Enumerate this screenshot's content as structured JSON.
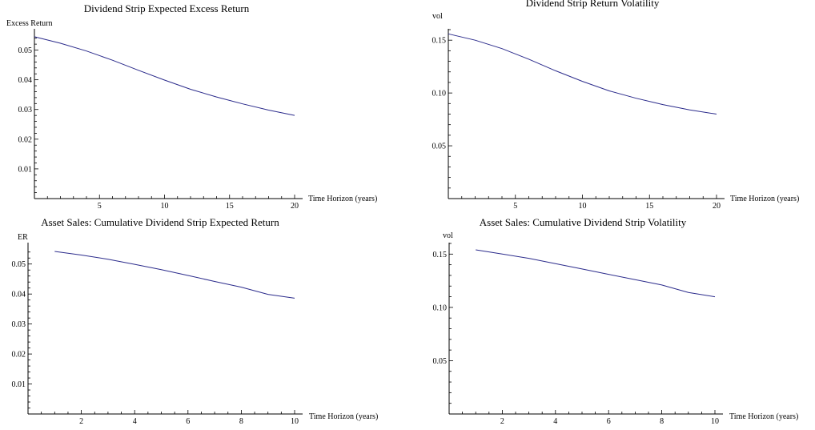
{
  "chart_data": [
    {
      "type": "line",
      "title": "Dividend Strip Expected Excess Return",
      "xlabel": "Time Horizon (years)",
      "ylabel": "Excess Return",
      "xlim": [
        0,
        20
      ],
      "ylim": [
        0,
        0.055
      ],
      "xticks": [
        5,
        10,
        15,
        20
      ],
      "yticks": [
        0.01,
        0.02,
        0.03,
        0.04,
        0.05
      ],
      "ytick_labels": [
        "0.01",
        "0.02",
        "0.03",
        "0.04",
        "0.05"
      ],
      "grid": false,
      "series": [
        {
          "color": "#2c2c8c",
          "x": [
            0,
            2,
            4,
            6,
            8,
            10,
            12,
            14,
            16,
            18,
            20
          ],
          "y": [
            0.0545,
            0.0523,
            0.0497,
            0.0466,
            0.0432,
            0.0399,
            0.0368,
            0.0342,
            0.0319,
            0.0298,
            0.028
          ]
        }
      ]
    },
    {
      "type": "line",
      "title": "Dividend Strip Return Volatility",
      "xlabel": "Time Horizon (years)",
      "ylabel": "vol",
      "xlim": [
        0,
        20
      ],
      "ylim": [
        0,
        0.16
      ],
      "xticks": [
        5,
        10,
        15,
        20
      ],
      "yticks": [
        0.05,
        0.1,
        0.15
      ],
      "ytick_labels": [
        "0.05",
        "0.10",
        "0.15"
      ],
      "grid": false,
      "series": [
        {
          "color": "#2c2c8c",
          "x": [
            0,
            2,
            4,
            6,
            8,
            10,
            12,
            14,
            16,
            18,
            20
          ],
          "y": [
            0.156,
            0.15,
            0.142,
            0.132,
            0.121,
            0.111,
            0.102,
            0.095,
            0.089,
            0.084,
            0.08
          ]
        }
      ]
    },
    {
      "type": "line",
      "title": "Asset Sales: Cumulative Dividend Strip Expected Return",
      "xlabel": "Time Horizon (years)",
      "ylabel": "ER",
      "xlim": [
        0,
        10
      ],
      "ylim": [
        0,
        0.055
      ],
      "xticks": [
        2,
        4,
        6,
        8,
        10
      ],
      "yticks": [
        0.01,
        0.02,
        0.03,
        0.04,
        0.05
      ],
      "ytick_labels": [
        "0.01",
        "0.02",
        "0.03",
        "0.04",
        "0.05"
      ],
      "grid": false,
      "series": [
        {
          "color": "#2c2c8c",
          "x": [
            1,
            2,
            3,
            4,
            5,
            6,
            7,
            8,
            9,
            10
          ],
          "y": [
            0.0542,
            0.053,
            0.0516,
            0.0499,
            0.0481,
            0.0462,
            0.0442,
            0.0423,
            0.0399,
            0.0386
          ]
        }
      ]
    },
    {
      "type": "line",
      "title": "Asset Sales: Cumulative Dividend Strip Volatility",
      "xlabel": "Time Horizon (years)",
      "ylabel": "vol",
      "xlim": [
        0,
        10
      ],
      "ylim": [
        0,
        0.16
      ],
      "xticks": [
        2,
        4,
        6,
        8,
        10
      ],
      "yticks": [
        0.05,
        0.1,
        0.15
      ],
      "ytick_labels": [
        "0.05",
        "0.10",
        "0.15"
      ],
      "grid": false,
      "series": [
        {
          "color": "#2c2c8c",
          "x": [
            1,
            2,
            3,
            4,
            5,
            6,
            7,
            8,
            9,
            10
          ],
          "y": [
            0.154,
            0.15,
            0.146,
            0.141,
            0.136,
            0.131,
            0.126,
            0.121,
            0.114,
            0.11
          ]
        }
      ]
    }
  ]
}
